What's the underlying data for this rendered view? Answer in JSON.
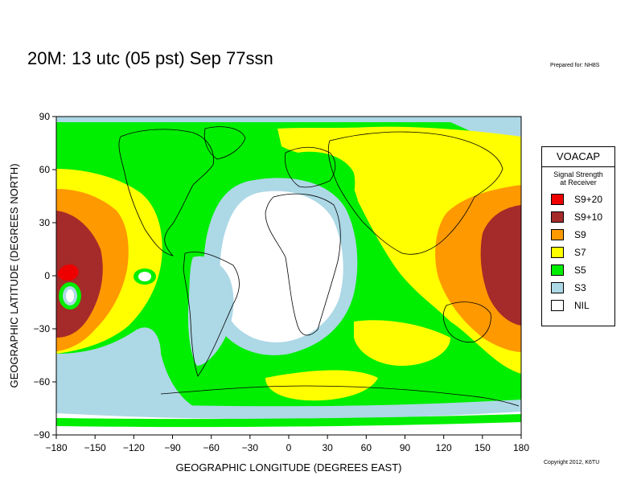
{
  "title": "20M:  13 utc (05 pst) Sep 77ssn",
  "prepared_for": "Prepared for: NH8S",
  "copyright": "Copyright 2012, K6TU",
  "axes": {
    "x_label": "GEOGRAPHIC LONGITUDE (DEGREES EAST)",
    "y_label": "GEOGRAPHIC LATITUDE (DEGREES NORTH)",
    "x_ticks": [
      "−180",
      "−150",
      "−120",
      "−90",
      "−60",
      "−30",
      "0",
      "30",
      "60",
      "90",
      "120",
      "150",
      "180"
    ],
    "y_ticks": [
      "90",
      "60",
      "30",
      "0",
      "−30",
      "−60",
      "−90"
    ]
  },
  "legend": {
    "title": "VOACAP",
    "subtitle_line1": "Signal Strength",
    "subtitle_line2": "at Receiver",
    "items": [
      {
        "label": "S9+20",
        "color": "#ee0000"
      },
      {
        "label": "S9+10",
        "color": "#a52a2a"
      },
      {
        "label": "S9",
        "color": "#ff9900"
      },
      {
        "label": "S7",
        "color": "#ffff00"
      },
      {
        "label": "S5",
        "color": "#00ee00"
      },
      {
        "label": "S3",
        "color": "#add8e6"
      },
      {
        "label": "NIL",
        "color": "#ffffff"
      }
    ]
  },
  "map": {
    "projection": "equirectangular",
    "lon_range": [
      -180,
      180
    ],
    "lat_range": [
      -90,
      90
    ],
    "colors": {
      "s9p20": "#ee0000",
      "s9p10": "#a52a2a",
      "s9": "#ff9900",
      "s7": "#ffff00",
      "s5": "#00ee00",
      "s3": "#add8e6",
      "nil": "#ffffff",
      "coast": "#000000"
    }
  }
}
